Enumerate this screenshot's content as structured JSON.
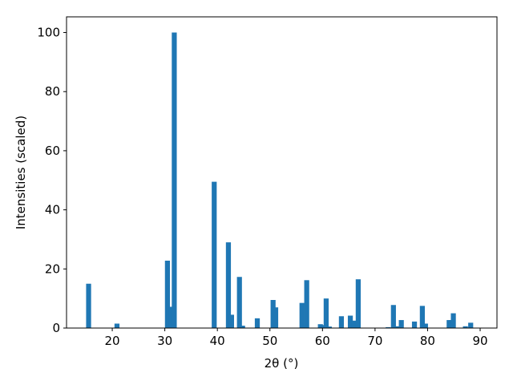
{
  "chart_data": {
    "type": "bar",
    "xlabel": "2θ (°)",
    "ylabel": "Intensities (scaled)",
    "x": [
      15.5,
      20.9,
      30.5,
      31.2,
      31.8,
      39.4,
      42.1,
      42.7,
      44.2,
      44.8,
      47.6,
      50.6,
      51.1,
      56.1,
      57.0,
      59.6,
      60.2,
      60.7,
      61.3,
      63.6,
      65.3,
      66.0,
      66.8,
      72.5,
      73.5,
      74.1,
      75.0,
      77.5,
      79.0,
      79.6,
      84.1,
      84.5,
      84.9,
      87.2,
      88.2
    ],
    "values": [
      15,
      1.5,
      22.8,
      7.2,
      100,
      49.5,
      29,
      4.5,
      17.3,
      0.8,
      3.3,
      9.5,
      7,
      8.5,
      16.2,
      1.3,
      1,
      10,
      0.5,
      4,
      4.2,
      2.5,
      16.5,
      0.3,
      7.8,
      0.6,
      2.7,
      2.2,
      7.5,
      1.5,
      2.7,
      2.7,
      5,
      0.6,
      1.8
    ],
    "color": "#1f77b4",
    "xlim": [
      11.3,
      93.2
    ],
    "ylim": [
      0,
      105.3
    ],
    "xticks": [
      20,
      30,
      40,
      50,
      60,
      70,
      80,
      90
    ],
    "yticks": [
      0,
      20,
      40,
      60,
      80,
      100
    ]
  }
}
